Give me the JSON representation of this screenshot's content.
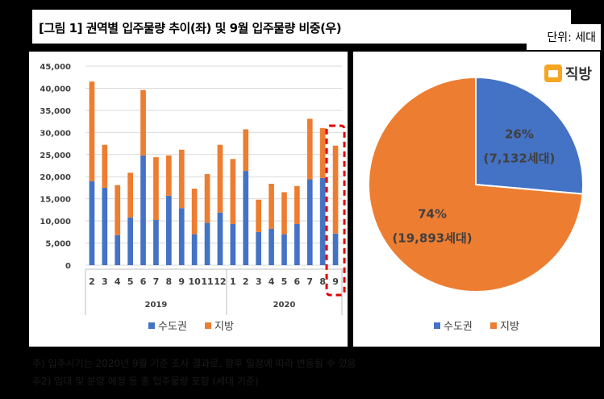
{
  "title": "[그림 1] 권역별 입주물량 추이(좌) 및 9월 입주물량 비중(우)",
  "unit": "단위: 세대",
  "logo": {
    "text": "직방",
    "icon": "house-icon",
    "color": "#f5a623"
  },
  "colors": {
    "capital": "#4472c4",
    "regional": "#ed7d31",
    "highlight": "#e00000"
  },
  "chart_data": [
    {
      "type": "bar",
      "stacked": true,
      "categories": [
        "2",
        "3",
        "4",
        "5",
        "6",
        "7",
        "8",
        "9",
        "10",
        "11",
        "12",
        "1",
        "2",
        "3",
        "4",
        "5",
        "6",
        "7",
        "8",
        "9"
      ],
      "groups": [
        {
          "label": "2019",
          "start": 0,
          "end": 10
        },
        {
          "label": "2020",
          "start": 11,
          "end": 19
        }
      ],
      "series": [
        {
          "name": "수도권",
          "color": "#4472c4",
          "values": [
            19000,
            17500,
            6800,
            10800,
            24800,
            10200,
            15700,
            12900,
            7000,
            9600,
            11900,
            9300,
            21300,
            7500,
            8200,
            7000,
            9300,
            19400,
            19700,
            7132
          ]
        },
        {
          "name": "지방",
          "color": "#ed7d31",
          "values": [
            22500,
            9700,
            11300,
            10100,
            14800,
            14200,
            9100,
            13200,
            10300,
            11000,
            15300,
            14700,
            9400,
            7300,
            10200,
            9500,
            8600,
            13700,
            11300,
            19893
          ]
        }
      ],
      "ylim": [
        0,
        45000
      ],
      "yticks": [
        "0",
        "5,000",
        "10,000",
        "15,000",
        "20,000",
        "25,000",
        "30,000",
        "35,000",
        "40,000",
        "45,000"
      ],
      "grid": true,
      "legend": "bottom",
      "highlight_index": 19
    },
    {
      "type": "pie",
      "slices": [
        {
          "name": "수도권",
          "value": 7132,
          "percent": "26%",
          "label": "(7,132세대)",
          "color": "#4472c4"
        },
        {
          "name": "지방",
          "value": 19893,
          "percent": "74%",
          "label": "(19,893세대)",
          "color": "#ed7d31"
        }
      ],
      "legend": "bottom"
    }
  ],
  "notes": [
    "주) 입주시기는 2020년 9월 기준 조사 결과로, 향후 일정에 따라 변동될 수 있음",
    "주2) 임대 및 분양 예정 등 총 입주물량 포함 (세대 기준)"
  ]
}
